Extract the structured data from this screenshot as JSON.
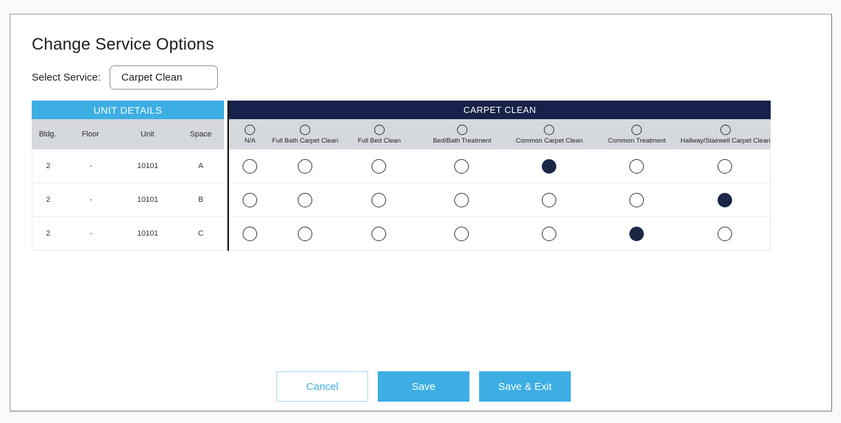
{
  "page": {
    "title": "Change Service Options"
  },
  "service_selector": {
    "label": "Select Service:",
    "value": "Carpet Clean"
  },
  "table": {
    "left_header": "UNIT DETAILS",
    "right_header": "CARPET CLEAN",
    "unit_columns": [
      "Bldg.",
      "Floor",
      "Unit",
      "Space"
    ],
    "option_columns": [
      "N/A",
      "Full Bath Carpet Clean",
      "Full Bed Clean",
      "Bed/Bath Treatment",
      "Common Carpet Clean",
      "Common Treatment",
      "Hallway/Stairwell Carpet Clean"
    ],
    "rows": [
      {
        "bldg": "2",
        "floor": "-",
        "unit": "10101",
        "space": "A",
        "selected": "Common Carpet Clean"
      },
      {
        "bldg": "2",
        "floor": "-",
        "unit": "10101",
        "space": "B",
        "selected": "Hallway/Stairwell Carpet Clean"
      },
      {
        "bldg": "2",
        "floor": "-",
        "unit": "10101",
        "space": "C",
        "selected": "Common Treatment"
      }
    ]
  },
  "buttons": {
    "cancel": "Cancel",
    "save": "Save",
    "save_exit": "Save & Exit"
  },
  "colors": {
    "accent_blue": "#3caee4",
    "header_navy": "#17224a",
    "radio_fill_navy": "#1a2745",
    "subheader_gray": "#d5d8dd"
  }
}
